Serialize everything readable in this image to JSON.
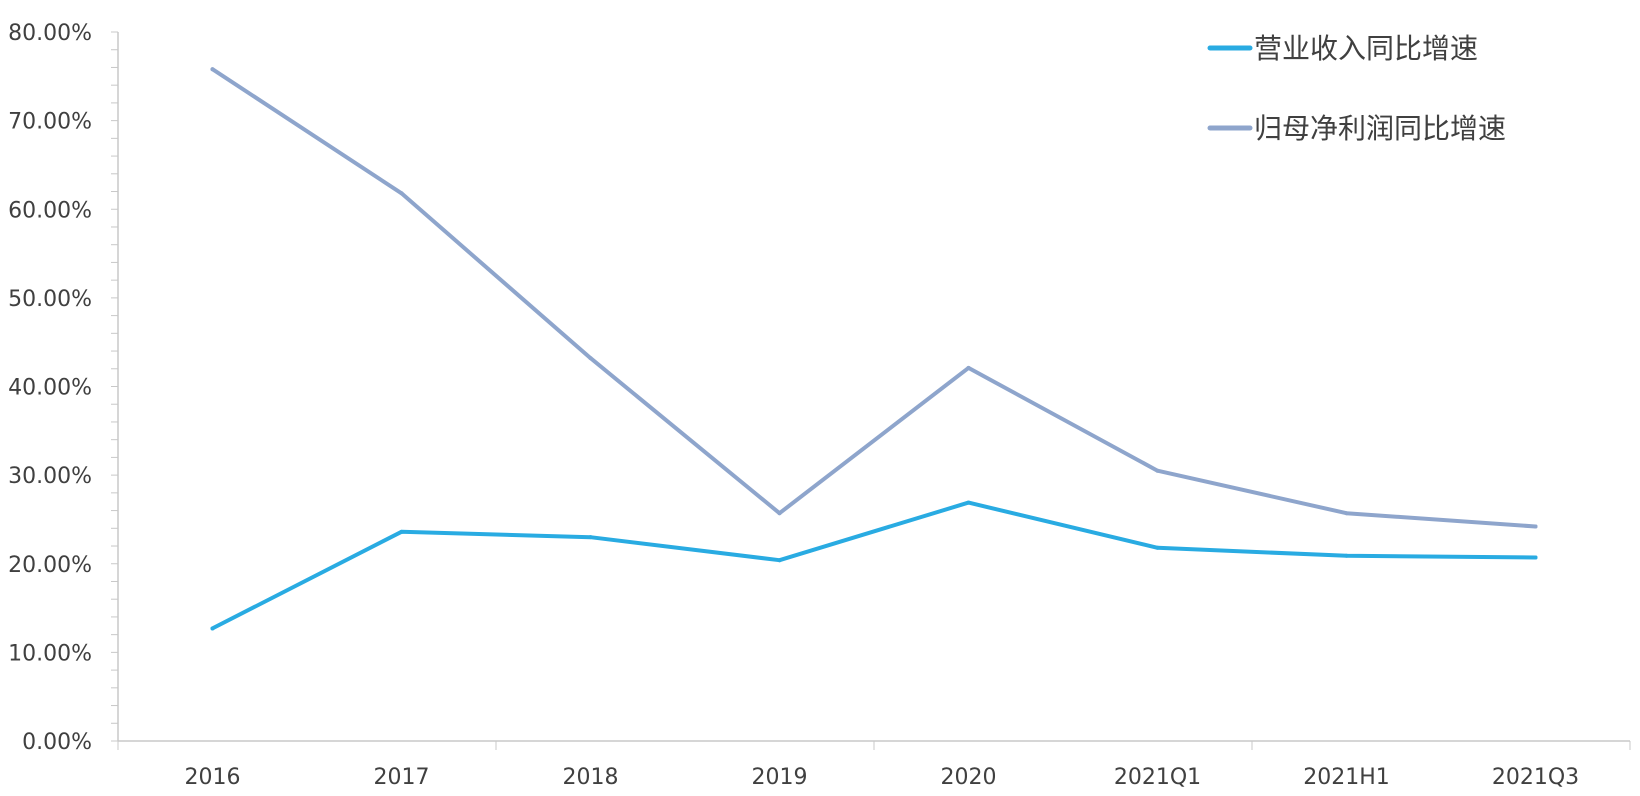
{
  "chart_data": {
    "type": "line",
    "title": "",
    "xlabel": "",
    "ylabel": "",
    "categories": [
      "2016",
      "2017",
      "2018",
      "2019",
      "2020",
      "2021Q1",
      "2021H1",
      "2021Q3"
    ],
    "ylim": [
      0,
      80
    ],
    "y_ticks": [
      "0.00%",
      "10.00%",
      "20.00%",
      "30.00%",
      "40.00%",
      "50.00%",
      "60.00%",
      "70.00%",
      "80.00%"
    ],
    "y_tick_values": [
      0,
      10,
      20,
      30,
      40,
      50,
      60,
      70,
      80
    ],
    "grid": false,
    "legend_position": "top-right",
    "series": [
      {
        "name": "营业收入同比增速",
        "color": "#29abe2",
        "values": [
          12.7,
          23.6,
          23.0,
          20.4,
          26.9,
          21.8,
          20.9,
          20.7
        ]
      },
      {
        "name": "归母净利润同比增速",
        "color": "#8ea5cc",
        "values": [
          75.8,
          61.8,
          43.2,
          25.7,
          42.1,
          30.5,
          25.7,
          24.2
        ]
      }
    ]
  }
}
